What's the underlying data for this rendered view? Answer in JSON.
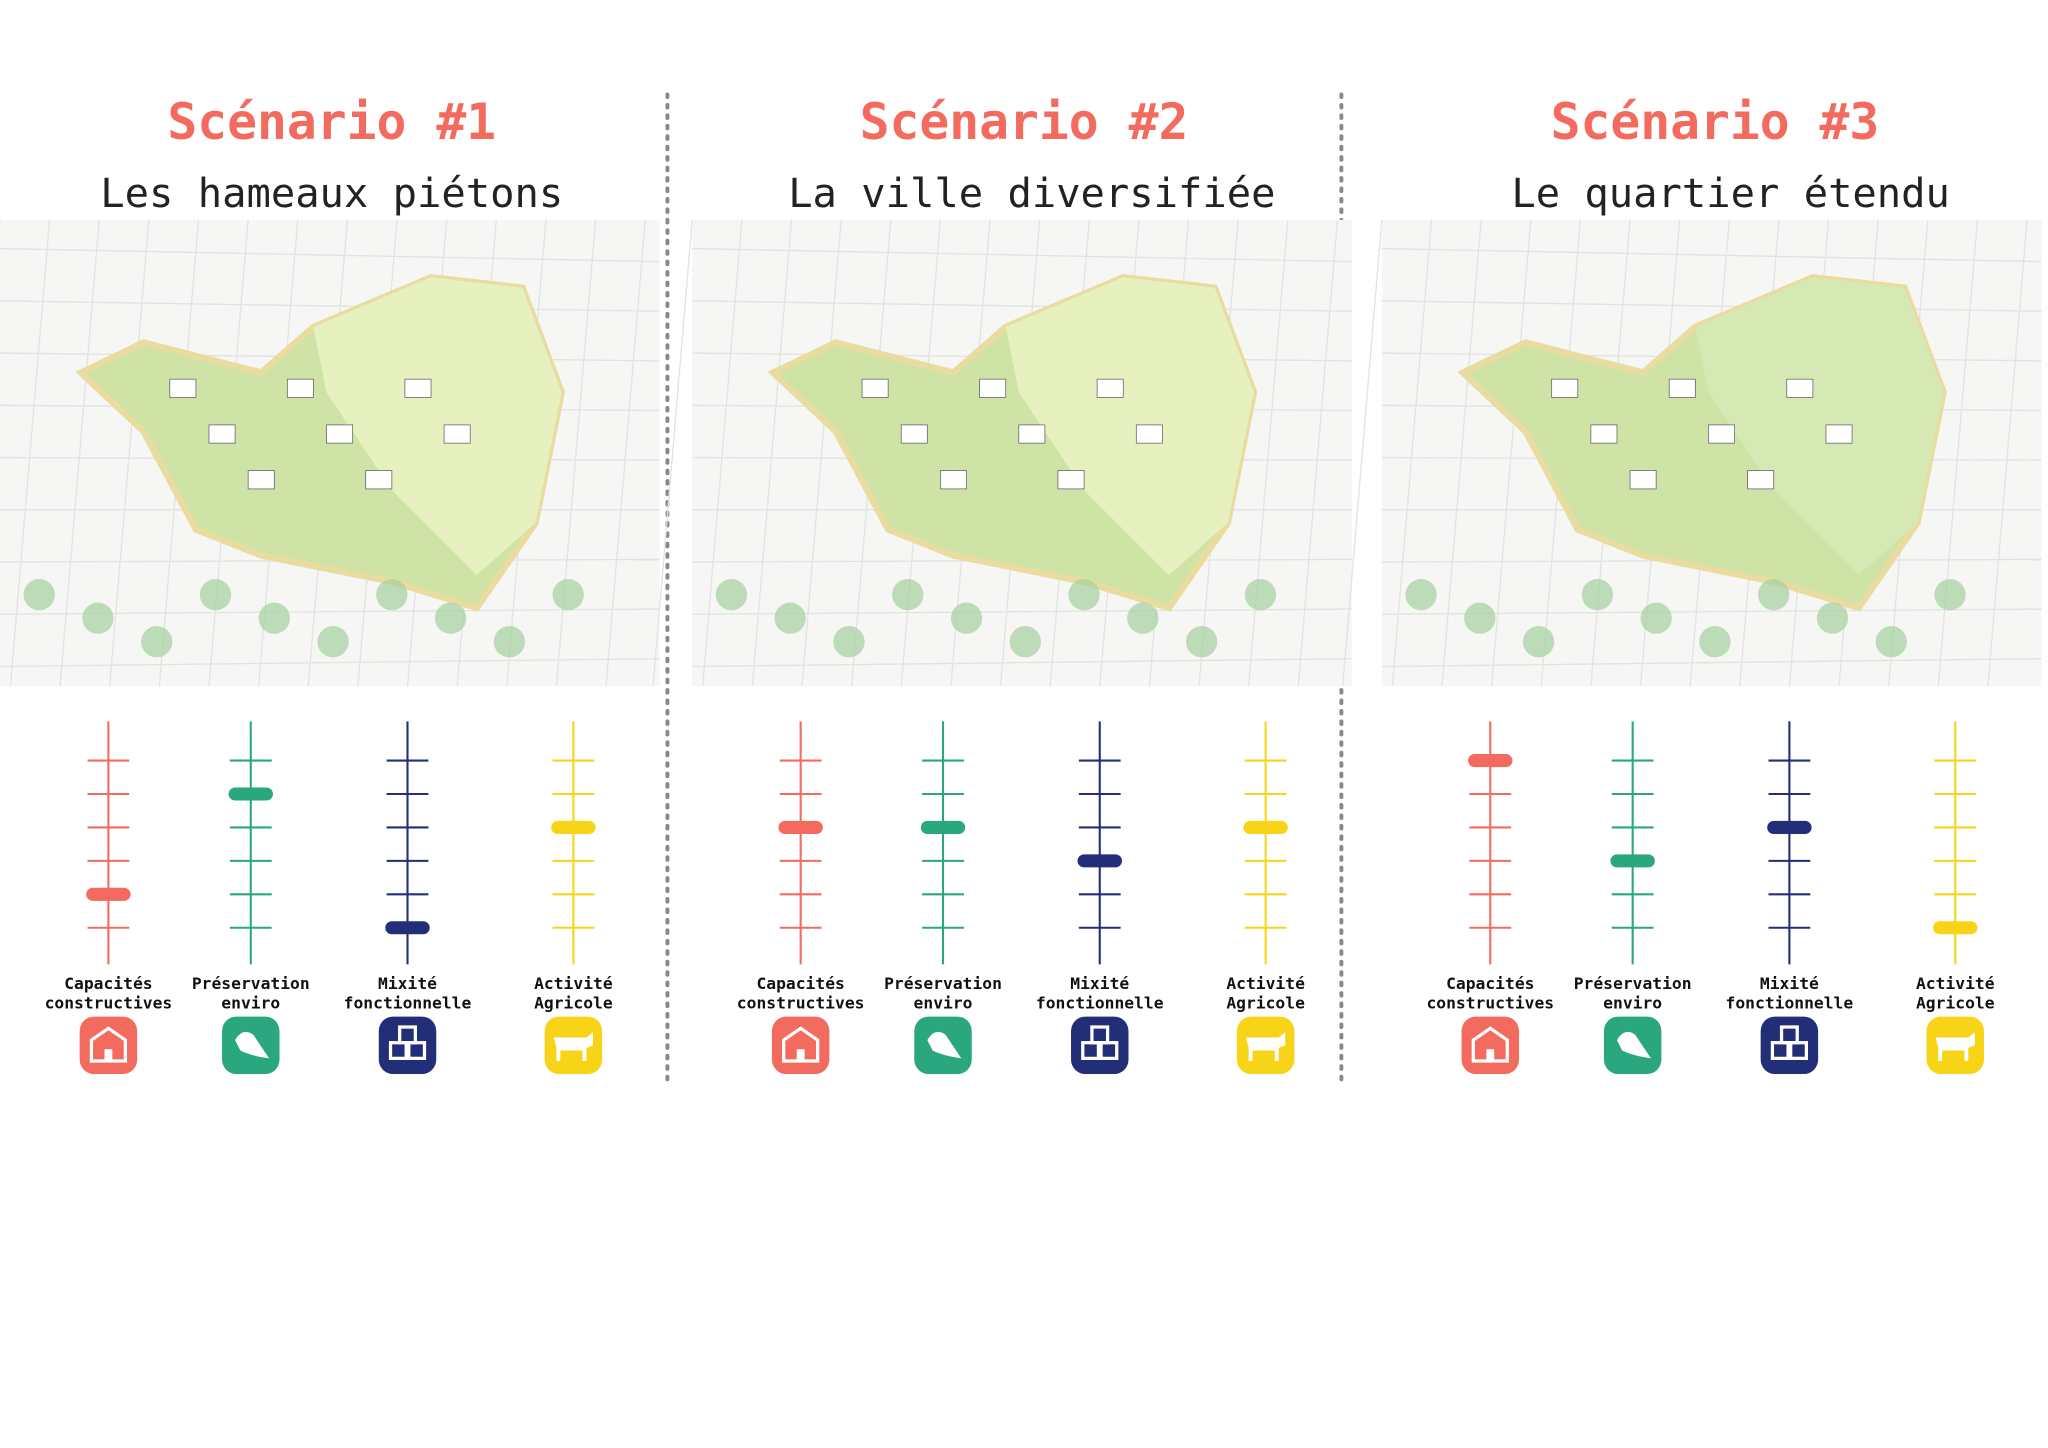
{
  "scenarios": [
    {
      "title": "Scénario #1",
      "subtitle": "Les hameaux piétons",
      "levels": [
        2,
        5,
        1,
        4
      ]
    },
    {
      "title": "Scénario #2",
      "subtitle": "La ville diversifiée",
      "levels": [
        4,
        4,
        3,
        4
      ]
    },
    {
      "title": "Scénario #3",
      "subtitle": "Le quartier étendu",
      "levels": [
        6,
        3,
        4,
        1
      ]
    }
  ],
  "indicators": [
    {
      "label": [
        "Capacités",
        "constructives"
      ],
      "color": "#f26b5e"
    },
    {
      "label": [
        "Préservation",
        "enviro"
      ],
      "color": "#2aa77e"
    },
    {
      "label": [
        "Mixité",
        "fonctionnelle"
      ],
      "color": "#232e78"
    },
    {
      "label": [
        "Activité",
        "Agricole"
      ],
      "color": "#f7d417"
    }
  ],
  "scale_ticks": [
    1,
    2,
    3,
    4,
    5,
    6
  ]
}
